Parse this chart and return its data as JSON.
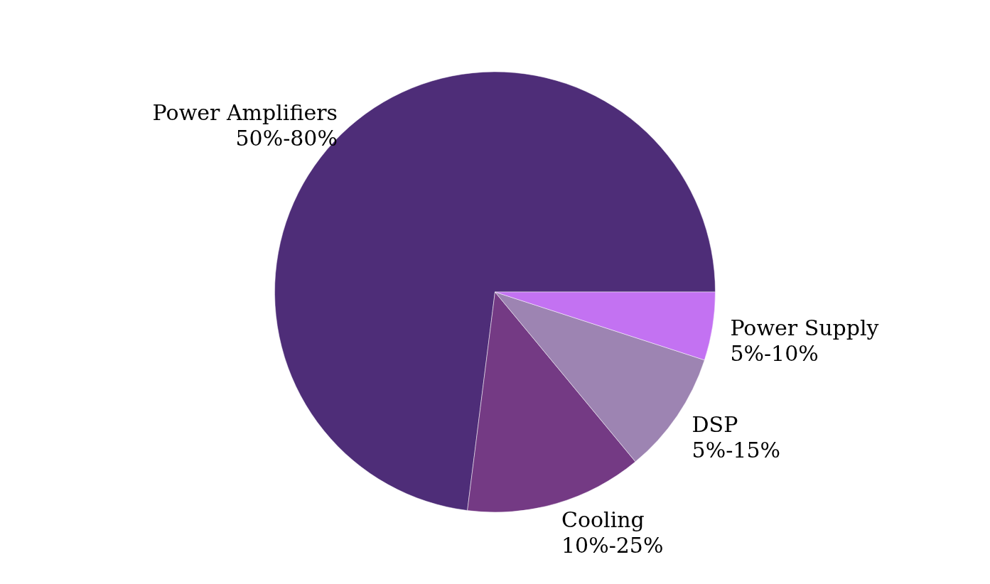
{
  "chart_data": {
    "type": "pie",
    "categories": [
      "Power Amplifiers\n50%-80%",
      "Cooling\n10%-25%",
      "DSP\n5%-15%",
      "Power Supply\n5%-10%"
    ],
    "values": [
      73,
      13,
      9,
      5
    ],
    "colors": [
      "#4e2d78",
      "#743a84",
      "#9d84b2",
      "#c372f2"
    ]
  }
}
